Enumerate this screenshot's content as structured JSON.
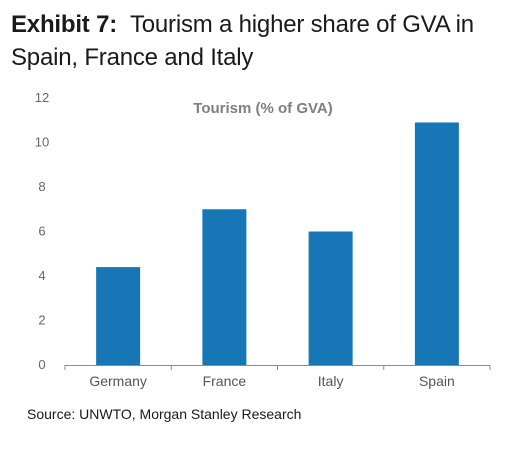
{
  "header": {
    "exhibit_label": "Exhibit 7:",
    "title_text": "Tourism a higher share of GVA in Spain, France and Italy"
  },
  "chart_data": {
    "type": "bar",
    "title": "Tourism (% of GVA)",
    "categories": [
      "Germany",
      "France",
      "Italy",
      "Spain"
    ],
    "values": [
      4.4,
      7.0,
      6.0,
      10.9
    ],
    "xlabel": "",
    "ylabel": "",
    "ylim": [
      0,
      12
    ],
    "yticks": [
      0,
      2,
      4,
      6,
      8,
      10,
      12
    ],
    "grid": false,
    "legend": "none",
    "bar_color": "#1777b6"
  },
  "footer": {
    "source": "Source: UNWTO, Morgan Stanley Research"
  }
}
